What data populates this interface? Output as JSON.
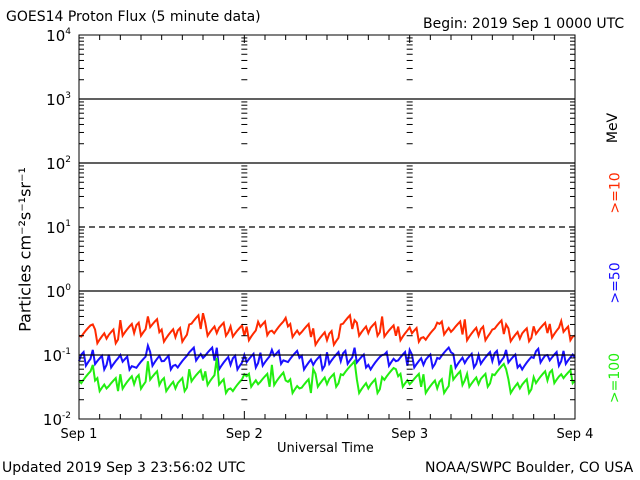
{
  "chart_data": {
    "type": "line",
    "title": "GOES14 Proton Flux (5 minute data)",
    "begin_label": "Begin: 2019 Sep 1 0000 UTC",
    "xlabel": "Universal Time",
    "ylabel": "Particles cm⁻²s⁻¹sr⁻¹",
    "units_label": "MeV",
    "y_scale": "log",
    "ylim": [
      0.01,
      10000
    ],
    "y_ticks": [
      {
        "base": "10",
        "exp": "-2"
      },
      {
        "base": "10",
        "exp": "-1"
      },
      {
        "base": "10",
        "exp": "0"
      },
      {
        "base": "10",
        "exp": "1"
      },
      {
        "base": "10",
        "exp": "2"
      },
      {
        "base": "10",
        "exp": "3"
      },
      {
        "base": "10",
        "exp": "4"
      }
    ],
    "x_ticks": [
      "Sep 1",
      "Sep 2",
      "Sep 3",
      "Sep 4"
    ],
    "x_range_hours": [
      0,
      72
    ],
    "threshold_lines": [
      {
        "value": 10,
        "style": "dashed"
      }
    ],
    "grid": true,
    "series": [
      {
        "name": ">=10",
        "color": "#ff2a00",
        "hours_step": 2,
        "values": [
          0.2,
          0.3,
          0.18,
          0.35,
          0.22,
          0.4,
          0.25,
          0.19,
          0.3,
          0.45,
          0.22,
          0.28,
          0.2,
          0.33,
          0.24,
          0.38,
          0.21,
          0.26,
          0.17,
          0.3,
          0.35,
          0.22,
          0.4,
          0.2,
          0.27,
          0.19,
          0.32,
          0.23,
          0.36,
          0.2,
          0.25,
          0.3,
          0.18,
          0.28,
          0.22,
          0.34,
          0.2
        ]
      },
      {
        "name": ">=50",
        "color": "#1a10ff",
        "hours_step": 2,
        "values": [
          0.08,
          0.12,
          0.07,
          0.1,
          0.065,
          0.14,
          0.08,
          0.07,
          0.11,
          0.09,
          0.13,
          0.07,
          0.1,
          0.075,
          0.12,
          0.08,
          0.09,
          0.07,
          0.11,
          0.08,
          0.13,
          0.07,
          0.1,
          0.08,
          0.12,
          0.07,
          0.09,
          0.11,
          0.075,
          0.1,
          0.08,
          0.12,
          0.07,
          0.09,
          0.1,
          0.08,
          0.09
        ]
      },
      {
        "name": ">=100",
        "color": "#22ee10",
        "hours_step": 2,
        "values": [
          0.04,
          0.07,
          0.03,
          0.05,
          0.035,
          0.08,
          0.04,
          0.03,
          0.06,
          0.04,
          0.09,
          0.03,
          0.05,
          0.035,
          0.07,
          0.04,
          0.03,
          0.06,
          0.035,
          0.05,
          0.08,
          0.03,
          0.045,
          0.06,
          0.035,
          0.05,
          0.03,
          0.07,
          0.04,
          0.035,
          0.05,
          0.06,
          0.03,
          0.045,
          0.04,
          0.05,
          0.04
        ]
      }
    ]
  },
  "footer": {
    "updated": "Updated 2019 Sep  3 23:56:02 UTC",
    "source": "NOAA/SWPC Boulder, CO USA"
  }
}
